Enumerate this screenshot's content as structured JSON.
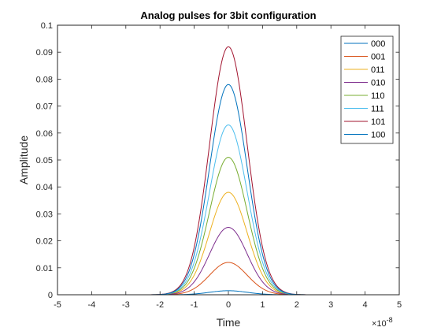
{
  "chart_data": {
    "type": "line",
    "title": "Analog pulses for 3bit configuration",
    "xlabel": "Time",
    "ylabel": "Amplitude",
    "x_exponent_base": "×10",
    "x_exponent_power": "-8",
    "xlim": [
      -5,
      5
    ],
    "ylim": [
      0,
      0.1
    ],
    "xticks": [
      -5,
      -4,
      -3,
      -2,
      -1,
      0,
      1,
      2,
      3,
      4,
      5
    ],
    "yticks": [
      0,
      0.01,
      0.02,
      0.03,
      0.04,
      0.05,
      0.06,
      0.07,
      0.08,
      0.09,
      0.1
    ],
    "xtick_labels": [
      "-5",
      "-4",
      "-3",
      "-2",
      "-1",
      "0",
      "1",
      "2",
      "3",
      "4",
      "5"
    ],
    "ytick_labels": [
      "0",
      "0.01",
      "0.02",
      "0.03",
      "0.04",
      "0.05",
      "0.06",
      "0.07",
      "0.08",
      "0.09",
      "0.1"
    ],
    "pulse_sigma": 0.55,
    "grid": false,
    "legend_position": "top-right",
    "series": [
      {
        "name": "000",
        "peak": 0.0015,
        "color": "#0072BD"
      },
      {
        "name": "001",
        "peak": 0.012,
        "color": "#D95319"
      },
      {
        "name": "011",
        "peak": 0.038,
        "color": "#EDB120"
      },
      {
        "name": "010",
        "peak": 0.025,
        "color": "#7E2F8E"
      },
      {
        "name": "110",
        "peak": 0.051,
        "color": "#77AC30"
      },
      {
        "name": "111",
        "peak": 0.063,
        "color": "#4DBEEE"
      },
      {
        "name": "101",
        "peak": 0.092,
        "color": "#A2142F"
      },
      {
        "name": "100",
        "peak": 0.078,
        "color": "#0072BD"
      }
    ]
  }
}
